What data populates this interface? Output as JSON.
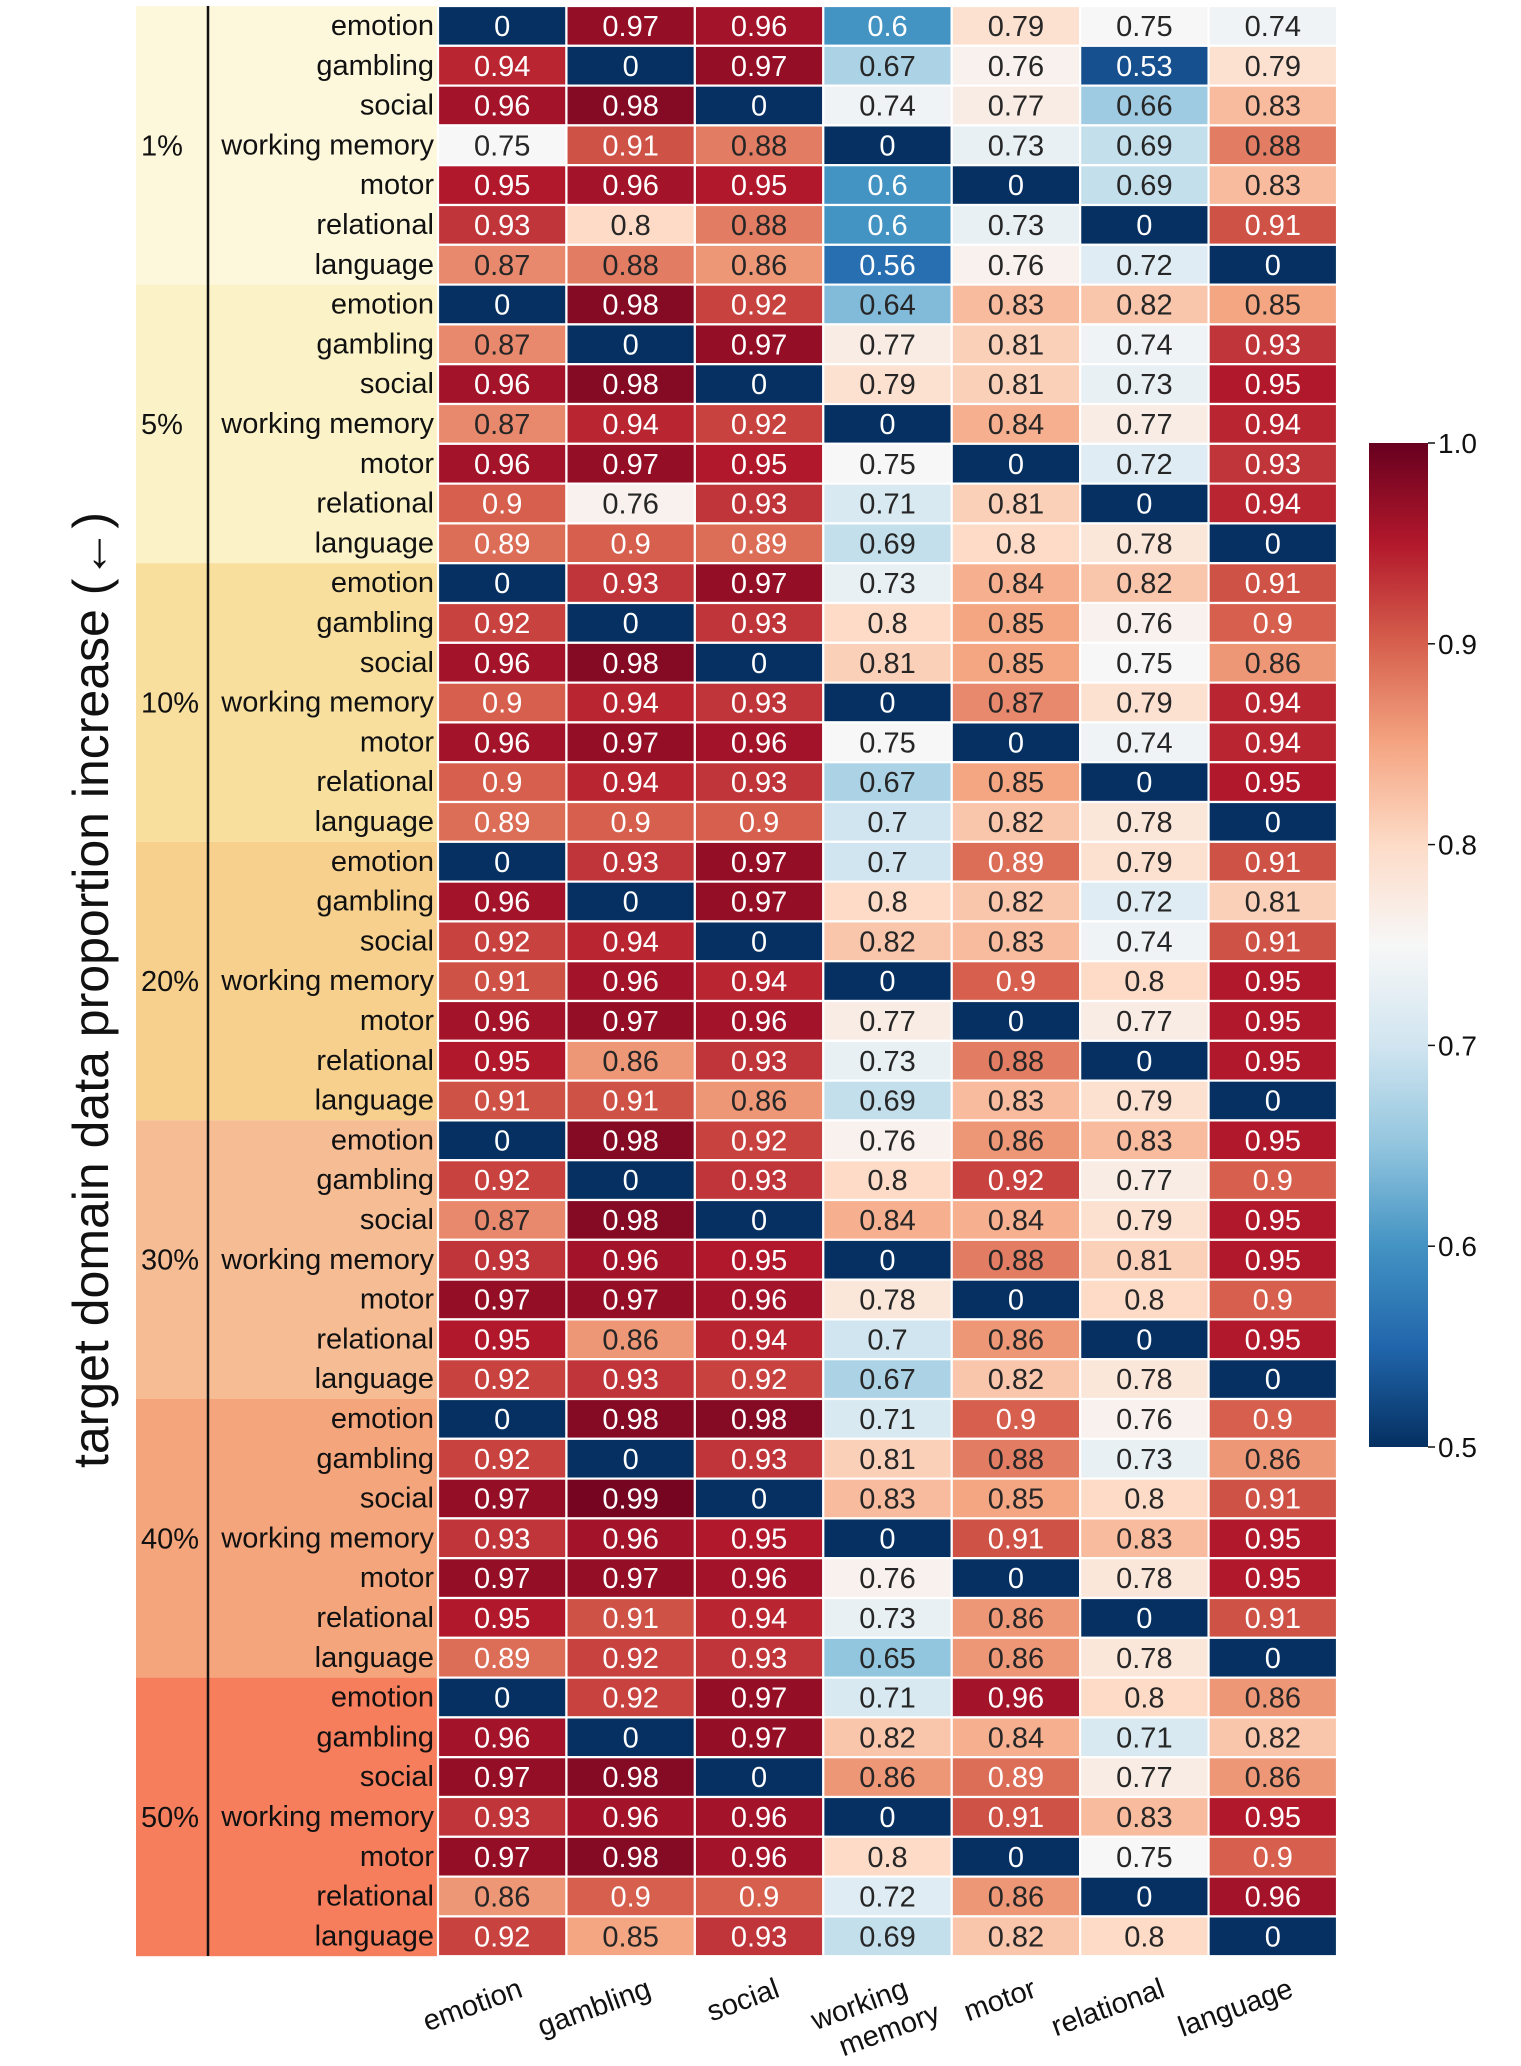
{
  "chart_data": {
    "type": "heatmap",
    "ylabel": "target domain data proportion increase (←)",
    "columns": [
      "emotion",
      "gambling",
      "social",
      "working memory",
      "motor",
      "relational",
      "language"
    ],
    "column_label_lines": [
      [
        "emotion"
      ],
      [
        "gambling"
      ],
      [
        "social"
      ],
      [
        "working",
        "memory"
      ],
      [
        "motor"
      ],
      [
        "relational"
      ],
      [
        "language"
      ]
    ],
    "row_labels": [
      "emotion",
      "gambling",
      "social",
      "working memory",
      "motor",
      "relational",
      "language"
    ],
    "colorbar": {
      "min": 0.5,
      "max": 1.0,
      "ticks": [
        "0.5",
        "0.6",
        "0.7",
        "0.8",
        "0.9",
        "1.0"
      ],
      "colormap": "RdBu_r"
    },
    "group_colors": [
      "#fdf7dc",
      "#fbf3c7",
      "#f8df9e",
      "#f7d08d",
      "#f6bd95",
      "#f5a57b",
      "#f67e5d"
    ],
    "groups": [
      {
        "label": "1%",
        "values": [
          [
            "0",
            "0.97",
            "0.96",
            "0.6",
            "0.79",
            "0.75",
            "0.74"
          ],
          [
            "0.94",
            "0",
            "0.97",
            "0.67",
            "0.76",
            "0.53",
            "0.79"
          ],
          [
            "0.96",
            "0.98",
            "0",
            "0.74",
            "0.77",
            "0.66",
            "0.83"
          ],
          [
            "0.75",
            "0.91",
            "0.88",
            "0",
            "0.73",
            "0.69",
            "0.88"
          ],
          [
            "0.95",
            "0.96",
            "0.95",
            "0.6",
            "0",
            "0.69",
            "0.83"
          ],
          [
            "0.93",
            "0.8",
            "0.88",
            "0.6",
            "0.73",
            "0",
            "0.91"
          ],
          [
            "0.87",
            "0.88",
            "0.86",
            "0.56",
            "0.76",
            "0.72",
            "0"
          ]
        ]
      },
      {
        "label": "5%",
        "values": [
          [
            "0",
            "0.98",
            "0.92",
            "0.64",
            "0.83",
            "0.82",
            "0.85"
          ],
          [
            "0.87",
            "0",
            "0.97",
            "0.77",
            "0.81",
            "0.74",
            "0.93"
          ],
          [
            "0.96",
            "0.98",
            "0",
            "0.79",
            "0.81",
            "0.73",
            "0.95"
          ],
          [
            "0.87",
            "0.94",
            "0.92",
            "0",
            "0.84",
            "0.77",
            "0.94"
          ],
          [
            "0.96",
            "0.97",
            "0.95",
            "0.75",
            "0",
            "0.72",
            "0.93"
          ],
          [
            "0.9",
            "0.76",
            "0.93",
            "0.71",
            "0.81",
            "0",
            "0.94"
          ],
          [
            "0.89",
            "0.9",
            "0.89",
            "0.69",
            "0.8",
            "0.78",
            "0"
          ]
        ]
      },
      {
        "label": "10%",
        "values": [
          [
            "0",
            "0.93",
            "0.97",
            "0.73",
            "0.84",
            "0.82",
            "0.91"
          ],
          [
            "0.92",
            "0",
            "0.93",
            "0.8",
            "0.85",
            "0.76",
            "0.9"
          ],
          [
            "0.96",
            "0.98",
            "0",
            "0.81",
            "0.85",
            "0.75",
            "0.86"
          ],
          [
            "0.9",
            "0.94",
            "0.93",
            "0",
            "0.87",
            "0.79",
            "0.94"
          ],
          [
            "0.96",
            "0.97",
            "0.96",
            "0.75",
            "0",
            "0.74",
            "0.94"
          ],
          [
            "0.9",
            "0.94",
            "0.93",
            "0.67",
            "0.85",
            "0",
            "0.95"
          ],
          [
            "0.89",
            "0.9",
            "0.9",
            "0.7",
            "0.82",
            "0.78",
            "0"
          ]
        ]
      },
      {
        "label": "20%",
        "values": [
          [
            "0",
            "0.93",
            "0.97",
            "0.7",
            "0.89",
            "0.79",
            "0.91"
          ],
          [
            "0.96",
            "0",
            "0.97",
            "0.8",
            "0.82",
            "0.72",
            "0.81"
          ],
          [
            "0.92",
            "0.94",
            "0",
            "0.82",
            "0.83",
            "0.74",
            "0.91"
          ],
          [
            "0.91",
            "0.96",
            "0.94",
            "0",
            "0.9",
            "0.8",
            "0.95"
          ],
          [
            "0.96",
            "0.97",
            "0.96",
            "0.77",
            "0",
            "0.77",
            "0.95"
          ],
          [
            "0.95",
            "0.86",
            "0.93",
            "0.73",
            "0.88",
            "0",
            "0.95"
          ],
          [
            "0.91",
            "0.91",
            "0.86",
            "0.69",
            "0.83",
            "0.79",
            "0"
          ]
        ]
      },
      {
        "label": "30%",
        "values": [
          [
            "0",
            "0.98",
            "0.92",
            "0.76",
            "0.86",
            "0.83",
            "0.95"
          ],
          [
            "0.92",
            "0",
            "0.93",
            "0.8",
            "0.92",
            "0.77",
            "0.9"
          ],
          [
            "0.87",
            "0.98",
            "0",
            "0.84",
            "0.84",
            "0.79",
            "0.95"
          ],
          [
            "0.93",
            "0.96",
            "0.95",
            "0",
            "0.88",
            "0.81",
            "0.95"
          ],
          [
            "0.97",
            "0.97",
            "0.96",
            "0.78",
            "0",
            "0.8",
            "0.9"
          ],
          [
            "0.95",
            "0.86",
            "0.94",
            "0.7",
            "0.86",
            "0",
            "0.95"
          ],
          [
            "0.92",
            "0.93",
            "0.92",
            "0.67",
            "0.82",
            "0.78",
            "0"
          ]
        ]
      },
      {
        "label": "40%",
        "values": [
          [
            "0",
            "0.98",
            "0.98",
            "0.71",
            "0.9",
            "0.76",
            "0.9"
          ],
          [
            "0.92",
            "0",
            "0.93",
            "0.81",
            "0.88",
            "0.73",
            "0.86"
          ],
          [
            "0.97",
            "0.99",
            "0",
            "0.83",
            "0.85",
            "0.8",
            "0.91"
          ],
          [
            "0.93",
            "0.96",
            "0.95",
            "0",
            "0.91",
            "0.83",
            "0.95"
          ],
          [
            "0.97",
            "0.97",
            "0.96",
            "0.76",
            "0",
            "0.78",
            "0.95"
          ],
          [
            "0.95",
            "0.91",
            "0.94",
            "0.73",
            "0.86",
            "0",
            "0.91"
          ],
          [
            "0.89",
            "0.92",
            "0.93",
            "0.65",
            "0.86",
            "0.78",
            "0"
          ]
        ]
      },
      {
        "label": "50%",
        "values": [
          [
            "0",
            "0.92",
            "0.97",
            "0.71",
            "0.96",
            "0.8",
            "0.86"
          ],
          [
            "0.96",
            "0",
            "0.97",
            "0.82",
            "0.84",
            "0.71",
            "0.82"
          ],
          [
            "0.97",
            "0.98",
            "0",
            "0.86",
            "0.89",
            "0.77",
            "0.86"
          ],
          [
            "0.93",
            "0.96",
            "0.96",
            "0",
            "0.91",
            "0.83",
            "0.95"
          ],
          [
            "0.97",
            "0.98",
            "0.96",
            "0.8",
            "0",
            "0.75",
            "0.9"
          ],
          [
            "0.86",
            "0.9",
            "0.9",
            "0.72",
            "0.86",
            "0",
            "0.96"
          ],
          [
            "0.92",
            "0.85",
            "0.93",
            "0.69",
            "0.82",
            "0.8",
            "0"
          ]
        ]
      }
    ]
  }
}
